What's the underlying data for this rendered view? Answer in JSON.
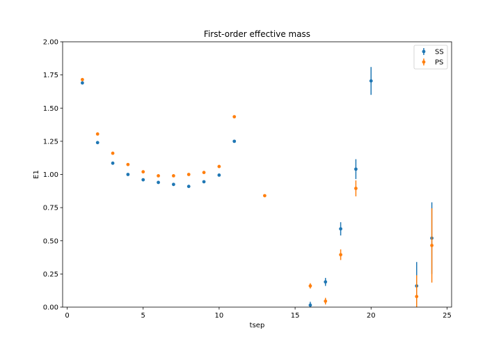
{
  "chart_data": {
    "type": "scatter",
    "title": "First-order effective mass",
    "xlabel": "tsep",
    "ylabel": "E1",
    "xlim": [
      -0.3,
      25.3
    ],
    "ylim": [
      0.0,
      2.0
    ],
    "x_ticks": [
      0,
      5,
      10,
      15,
      20,
      25
    ],
    "y_ticks": [
      0.0,
      0.25,
      0.5,
      0.75,
      1.0,
      1.25,
      1.5,
      1.75,
      2.0
    ],
    "x_tick_labels": [
      "0",
      "5",
      "10",
      "15",
      "20",
      "25"
    ],
    "y_tick_labels": [
      "0.00",
      "0.25",
      "0.50",
      "0.75",
      "1.00",
      "1.25",
      "1.50",
      "1.75",
      "2.00"
    ],
    "grid": false,
    "legend_position": "top-right",
    "error_bars": true,
    "series": [
      {
        "name": "SS",
        "color": "#1f77b4",
        "points": [
          {
            "x": 1,
            "y": 1.69,
            "err": 0.005
          },
          {
            "x": 2,
            "y": 1.24,
            "err": 0.004
          },
          {
            "x": 3,
            "y": 1.085,
            "err": 0.004
          },
          {
            "x": 4,
            "y": 1.0,
            "err": 0.004
          },
          {
            "x": 5,
            "y": 0.96,
            "err": 0.004
          },
          {
            "x": 6,
            "y": 0.94,
            "err": 0.004
          },
          {
            "x": 7,
            "y": 0.925,
            "err": 0.004
          },
          {
            "x": 8,
            "y": 0.91,
            "err": 0.005
          },
          {
            "x": 9,
            "y": 0.945,
            "err": 0.005
          },
          {
            "x": 10,
            "y": 0.995,
            "err": 0.006
          },
          {
            "x": 11,
            "y": 1.25,
            "err": 0.008
          },
          {
            "x": 16,
            "y": 0.015,
            "err": 0.025
          },
          {
            "x": 17,
            "y": 0.19,
            "err": 0.03
          },
          {
            "x": 18,
            "y": 0.59,
            "err": 0.05
          },
          {
            "x": 19,
            "y": 1.04,
            "err": 0.075
          },
          {
            "x": 20,
            "y": 1.705,
            "err": 0.105
          },
          {
            "x": 23,
            "y": 0.16,
            "err": 0.18
          },
          {
            "x": 24,
            "y": 0.52,
            "err": 0.27
          }
        ]
      },
      {
        "name": "PS",
        "color": "#ff7f0e",
        "points": [
          {
            "x": 1,
            "y": 1.715,
            "err": 0.005
          },
          {
            "x": 2,
            "y": 1.305,
            "err": 0.004
          },
          {
            "x": 3,
            "y": 1.16,
            "err": 0.004
          },
          {
            "x": 4,
            "y": 1.075,
            "err": 0.004
          },
          {
            "x": 5,
            "y": 1.02,
            "err": 0.004
          },
          {
            "x": 6,
            "y": 0.99,
            "err": 0.004
          },
          {
            "x": 7,
            "y": 0.99,
            "err": 0.004
          },
          {
            "x": 8,
            "y": 1.0,
            "err": 0.004
          },
          {
            "x": 9,
            "y": 1.015,
            "err": 0.005
          },
          {
            "x": 10,
            "y": 1.06,
            "err": 0.006
          },
          {
            "x": 11,
            "y": 1.435,
            "err": 0.008
          },
          {
            "x": 13,
            "y": 0.84,
            "err": 0.01
          },
          {
            "x": 16,
            "y": 0.16,
            "err": 0.02
          },
          {
            "x": 17,
            "y": 0.045,
            "err": 0.025
          },
          {
            "x": 18,
            "y": 0.395,
            "err": 0.04
          },
          {
            "x": 19,
            "y": 0.895,
            "err": 0.06
          },
          {
            "x": 23,
            "y": 0.08,
            "err": 0.16
          },
          {
            "x": 24,
            "y": 0.465,
            "err": 0.28
          }
        ]
      }
    ]
  }
}
